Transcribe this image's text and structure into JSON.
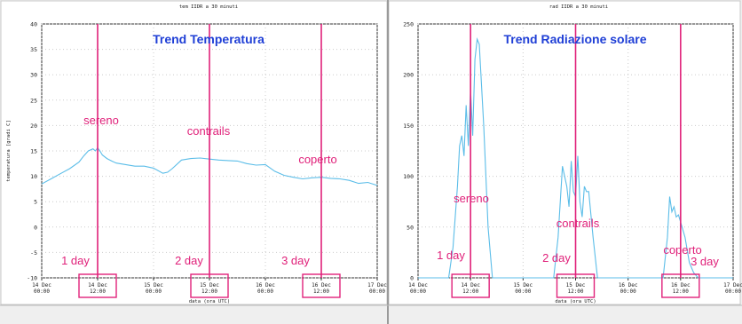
{
  "colors": {
    "background": "#efefef",
    "panel": "#ffffff",
    "line": "#5bbde8",
    "marker": "#e0217a",
    "title": "#1f3fd6",
    "axis": "#333333"
  },
  "chart_data": [
    {
      "type": "line",
      "title": "tem IIDR a 30 minuti",
      "overlay_title": "Trend Temperatura",
      "xlabel": "data (ora UTC)",
      "ylabel": "temperatura [gradi C]",
      "xlim": [
        0,
        72
      ],
      "ylim": [
        -10,
        40
      ],
      "yticks": [
        -10,
        -5,
        0,
        5,
        10,
        15,
        20,
        25,
        30,
        35,
        40
      ],
      "xticks": [
        {
          "x": 0,
          "date": "14 Dec",
          "time": "00:00"
        },
        {
          "x": 12,
          "date": "14 Dec",
          "time": "12:00"
        },
        {
          "x": 24,
          "date": "15 Dec",
          "time": "00:00"
        },
        {
          "x": 36,
          "date": "15 Dec",
          "time": "12:00"
        },
        {
          "x": 48,
          "date": "16 Dec",
          "time": "00:00"
        },
        {
          "x": 60,
          "date": "16 Dec",
          "time": "12:00"
        },
        {
          "x": 72,
          "date": "17 Dec",
          "time": "00:00"
        }
      ],
      "series": [
        {
          "x": [
            0,
            2,
            4,
            6,
            8,
            9,
            10,
            11,
            11.5,
            12,
            12.5,
            13,
            14,
            15,
            16,
            18,
            20,
            22,
            24,
            26,
            27,
            28,
            30,
            32,
            34,
            36,
            38,
            40,
            42,
            44,
            46,
            48,
            50,
            52,
            54,
            56,
            58,
            60,
            62,
            64,
            66,
            68,
            70,
            72
          ],
          "y": [
            8.5,
            9.5,
            10.5,
            11.5,
            12.8,
            14,
            15,
            15.4,
            15,
            15.6,
            15,
            14.2,
            13.5,
            13,
            12.6,
            12.3,
            12,
            12,
            11.6,
            10.6,
            10.8,
            11.5,
            13.2,
            13.5,
            13.6,
            13.4,
            13.2,
            13.1,
            13,
            12.5,
            12.2,
            12.3,
            11,
            10.2,
            9.8,
            9.5,
            9.7,
            9.8,
            9.6,
            9.5,
            9.2,
            8.6,
            8.8,
            8.2
          ]
        }
      ],
      "markers": [
        {
          "x": 12,
          "condition": "sereno",
          "day": "1 day"
        },
        {
          "x": 36,
          "condition": "contrails",
          "day": "2 day"
        },
        {
          "x": 60,
          "condition": "coperto",
          "day": "3 day"
        }
      ],
      "grid": true
    },
    {
      "type": "line",
      "title": "rad IIDR a 30 minuti",
      "overlay_title": "Trend Radiazione solare",
      "xlabel": "data (ora UTC)",
      "ylabel": "",
      "xlim": [
        0,
        72
      ],
      "ylim": [
        0,
        250
      ],
      "yticks": [
        0,
        50,
        100,
        150,
        200,
        250
      ],
      "xticks": [
        {
          "x": 0,
          "date": "14 Dec",
          "time": "00:00"
        },
        {
          "x": 12,
          "date": "14 Dec",
          "time": "12:00"
        },
        {
          "x": 24,
          "date": "15 Dec",
          "time": "00:00"
        },
        {
          "x": 36,
          "date": "15 Dec",
          "time": "12:00"
        },
        {
          "x": 48,
          "date": "16 Dec",
          "time": "00:00"
        },
        {
          "x": 60,
          "date": "16 Dec",
          "time": "12:00"
        },
        {
          "x": 72,
          "date": "17 Dec",
          "time": "00:00"
        }
      ],
      "series": [
        {
          "x": [
            0,
            7,
            8,
            9,
            9.5,
            10,
            10.5,
            11,
            11.5,
            12,
            12.5,
            13,
            13.5,
            14,
            15,
            16,
            17,
            24,
            31,
            32,
            33,
            34,
            34.5,
            35,
            35.5,
            36,
            36.5,
            37,
            37.5,
            38,
            38.5,
            39,
            40,
            41,
            48,
            55,
            56,
            57,
            57.5,
            58,
            58.5,
            59,
            59.5,
            60,
            61,
            62,
            63,
            64,
            72
          ],
          "y": [
            0,
            0,
            30,
            90,
            130,
            140,
            120,
            170,
            130,
            185,
            140,
            215,
            235,
            230,
            150,
            50,
            0,
            0,
            0,
            40,
            110,
            90,
            70,
            115,
            85,
            80,
            120,
            75,
            60,
            90,
            85,
            85,
            40,
            0,
            0,
            0,
            0,
            40,
            80,
            65,
            70,
            60,
            62,
            55,
            40,
            15,
            5,
            0,
            0
          ]
        }
      ],
      "markers": [
        {
          "x": 12,
          "condition": "sereno",
          "day": "1 day"
        },
        {
          "x": 36,
          "condition": "contrails",
          "day": "2 day"
        },
        {
          "x": 60,
          "condition": "coperto",
          "day": "3 day"
        }
      ],
      "grid": true
    }
  ]
}
